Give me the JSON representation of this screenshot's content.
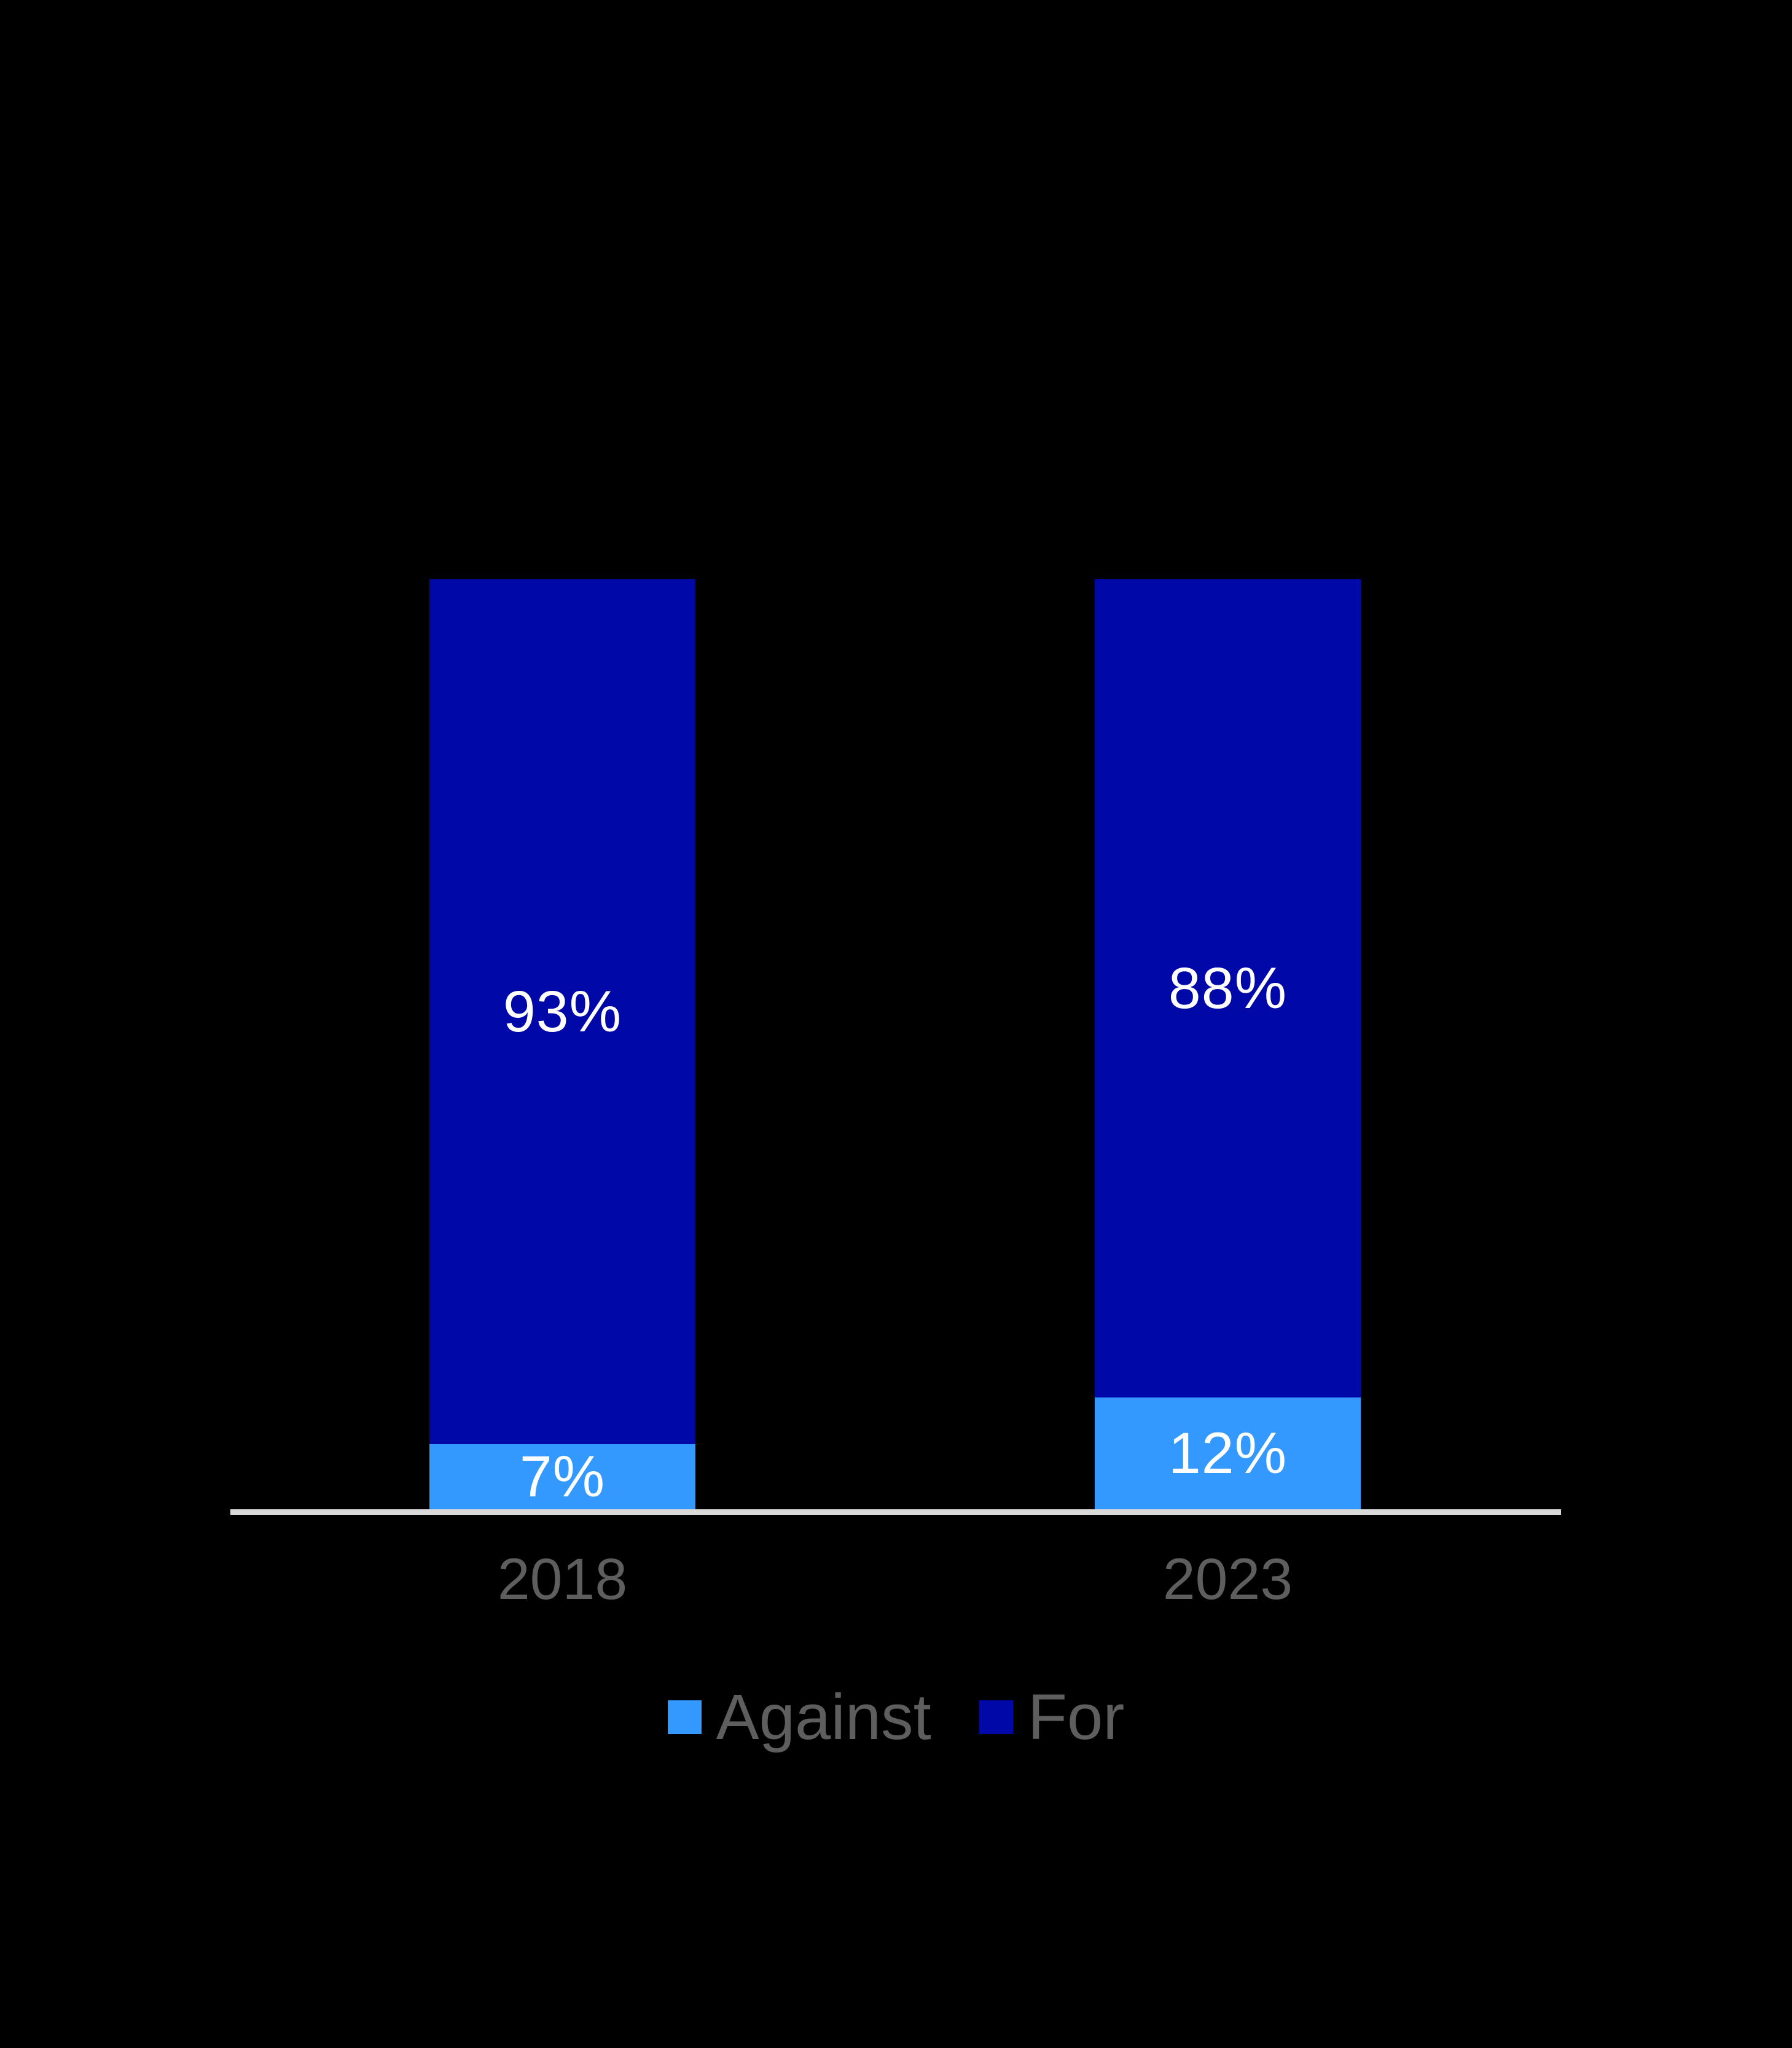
{
  "chart_data": {
    "type": "bar",
    "stacked": true,
    "categories": [
      "2018",
      "2023"
    ],
    "series": [
      {
        "name": "Against",
        "color": "#3399FF",
        "values": [
          7,
          12
        ],
        "value_labels": [
          "7%",
          "12%"
        ]
      },
      {
        "name": "For",
        "color": "#0009A8",
        "values": [
          93,
          88
        ],
        "value_labels": [
          "93%",
          "88%"
        ]
      }
    ],
    "ylim": [
      0,
      100
    ],
    "grid": false,
    "axes_visible": false,
    "legend_position": "bottom",
    "background_color": "#000000",
    "baseline_color": "#D9D9D9",
    "value_label_color": "#FFFFFF",
    "category_label_color": "#5E5E5E",
    "legend_text_color": "#5E5E5E"
  }
}
